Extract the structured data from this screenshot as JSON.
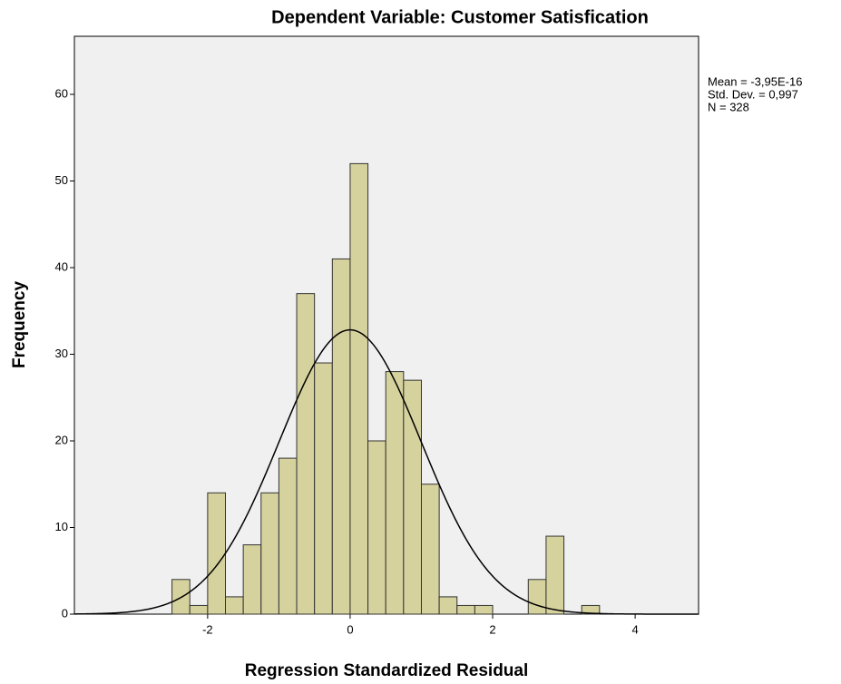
{
  "chart_data": {
    "type": "histogram",
    "title": "Dependent Variable: Customer Satisfication",
    "x_label": "Regression Standardized Residual",
    "y_label": "Frequency",
    "annotations": [
      "Mean = -3,95E-16",
      "Std. Dev. = 0,997",
      "N = 328"
    ],
    "bins": [
      -2.5,
      -2.25,
      -2.0,
      -1.75,
      -1.5,
      -1.25,
      -1.0,
      -0.75,
      -0.5,
      -0.25,
      0,
      0.25,
      0.5,
      0.75,
      1.0,
      1.25,
      1.5,
      1.75,
      2.0,
      2.25,
      2.5,
      2.75,
      3.0,
      3.25,
      3.5
    ],
    "values": [
      4,
      1,
      14,
      2,
      8,
      14,
      18,
      37,
      29,
      41,
      52,
      20,
      28,
      27,
      15,
      2,
      1,
      1,
      0,
      0,
      4,
      9,
      0,
      1
    ],
    "color": "#d6d29d",
    "normal_curve": {
      "mean": -3.95e-16,
      "std_dev": 0.997,
      "n": 328
    },
    "xlim": [
      -3.87,
      4.89
    ],
    "ylim": [
      0,
      66.7
    ],
    "xticks": [
      -2,
      0,
      2,
      4
    ],
    "yticks": [
      0,
      10,
      20,
      30,
      40,
      50,
      60
    ]
  }
}
